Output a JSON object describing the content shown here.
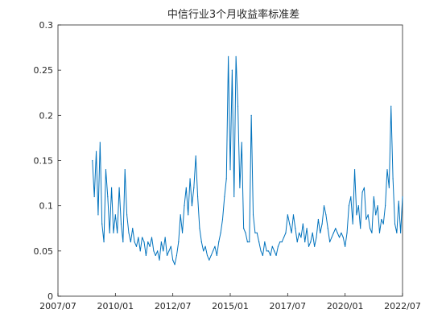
{
  "chart_data": {
    "type": "line",
    "title": "中信行业3个月收益率标准差",
    "xlabel": "",
    "ylabel": "",
    "x_ticks": [
      "2007/07",
      "2010/01",
      "2012/07",
      "2015/01",
      "2017/07",
      "2020/01",
      "2022/07"
    ],
    "y_ticks": [
      "0",
      "0.05",
      "0.1",
      "0.15",
      "0.2",
      "0.25",
      "0.3"
    ],
    "xlim": [
      "2007/07",
      "2022/07"
    ],
    "ylim": [
      0,
      0.3
    ],
    "grid": false,
    "line_color": "#0072BD",
    "series": [
      {
        "x": [
          "2009/01",
          "2009/02",
          "2009/03",
          "2009/04",
          "2009/05",
          "2009/06",
          "2009/07",
          "2009/08",
          "2009/09",
          "2009/10",
          "2009/11",
          "2009/12",
          "2010/01",
          "2010/02",
          "2010/03",
          "2010/04",
          "2010/05",
          "2010/06",
          "2010/07",
          "2010/08",
          "2010/09",
          "2010/10",
          "2010/11",
          "2010/12",
          "2011/01",
          "2011/02",
          "2011/03",
          "2011/04",
          "2011/05",
          "2011/06",
          "2011/07",
          "2011/08",
          "2011/09",
          "2011/10",
          "2011/11",
          "2011/12",
          "2012/01",
          "2012/02",
          "2012/03",
          "2012/04",
          "2012/05",
          "2012/06",
          "2012/07",
          "2012/08",
          "2012/09",
          "2012/10",
          "2012/11",
          "2012/12",
          "2013/01",
          "2013/02",
          "2013/03",
          "2013/04",
          "2013/05",
          "2013/06",
          "2013/07",
          "2013/08",
          "2013/09",
          "2013/10",
          "2013/11",
          "2013/12",
          "2014/01",
          "2014/02",
          "2014/03",
          "2014/04",
          "2014/05",
          "2014/06",
          "2014/07",
          "2014/08",
          "2014/09",
          "2014/10",
          "2014/11",
          "2014/12",
          "2015/01",
          "2015/02",
          "2015/03",
          "2015/04",
          "2015/05",
          "2015/06",
          "2015/07",
          "2015/08",
          "2015/09",
          "2015/10",
          "2015/11",
          "2015/12",
          "2016/01",
          "2016/02",
          "2016/03",
          "2016/04",
          "2016/05",
          "2016/06",
          "2016/07",
          "2016/08",
          "2016/09",
          "2016/10",
          "2016/11",
          "2016/12",
          "2017/01",
          "2017/02",
          "2017/03",
          "2017/04",
          "2017/05",
          "2017/06",
          "2017/07",
          "2017/08",
          "2017/09",
          "2017/10",
          "2017/11",
          "2017/12",
          "2018/01",
          "2018/02",
          "2018/03",
          "2018/04",
          "2018/05",
          "2018/06",
          "2018/07",
          "2018/08",
          "2018/09",
          "2018/10",
          "2018/11",
          "2018/12",
          "2019/01",
          "2019/02",
          "2019/03",
          "2019/04",
          "2019/05",
          "2019/06",
          "2019/07",
          "2019/08",
          "2019/09",
          "2019/10",
          "2019/11",
          "2019/12",
          "2020/01",
          "2020/02",
          "2020/03",
          "2020/04",
          "2020/05",
          "2020/06",
          "2020/07",
          "2020/08",
          "2020/09",
          "2020/10",
          "2020/11",
          "2020/12",
          "2021/01",
          "2021/02",
          "2021/03",
          "2021/04",
          "2021/05",
          "2021/06",
          "2021/07",
          "2021/08",
          "2021/09",
          "2021/10",
          "2021/11",
          "2021/12",
          "2022/01",
          "2022/02",
          "2022/03",
          "2022/04",
          "2022/05",
          "2022/06",
          "2022/07"
        ],
        "values": [
          0.15,
          0.11,
          0.16,
          0.09,
          0.17,
          0.08,
          0.06,
          0.14,
          0.11,
          0.07,
          0.12,
          0.07,
          0.09,
          0.07,
          0.12,
          0.08,
          0.06,
          0.14,
          0.09,
          0.07,
          0.06,
          0.075,
          0.06,
          0.055,
          0.065,
          0.05,
          0.065,
          0.06,
          0.045,
          0.06,
          0.055,
          0.065,
          0.05,
          0.045,
          0.05,
          0.04,
          0.06,
          0.05,
          0.065,
          0.045,
          0.05,
          0.055,
          0.04,
          0.035,
          0.045,
          0.06,
          0.09,
          0.07,
          0.1,
          0.12,
          0.09,
          0.13,
          0.1,
          0.12,
          0.155,
          0.11,
          0.075,
          0.06,
          0.05,
          0.055,
          0.045,
          0.04,
          0.045,
          0.05,
          0.055,
          0.045,
          0.06,
          0.07,
          0.085,
          0.11,
          0.13,
          0.265,
          0.14,
          0.25,
          0.11,
          0.265,
          0.21,
          0.12,
          0.17,
          0.075,
          0.07,
          0.06,
          0.06,
          0.2,
          0.09,
          0.07,
          0.07,
          0.06,
          0.05,
          0.045,
          0.06,
          0.05,
          0.05,
          0.045,
          0.055,
          0.05,
          0.045,
          0.055,
          0.06,
          0.06,
          0.065,
          0.07,
          0.09,
          0.08,
          0.07,
          0.09,
          0.075,
          0.06,
          0.07,
          0.065,
          0.08,
          0.06,
          0.075,
          0.055,
          0.06,
          0.07,
          0.055,
          0.065,
          0.085,
          0.07,
          0.08,
          0.1,
          0.09,
          0.075,
          0.06,
          0.065,
          0.07,
          0.075,
          0.07,
          0.065,
          0.07,
          0.065,
          0.055,
          0.07,
          0.1,
          0.11,
          0.08,
          0.14,
          0.09,
          0.1,
          0.075,
          0.115,
          0.12,
          0.085,
          0.09,
          0.075,
          0.07,
          0.11,
          0.09,
          0.1,
          0.07,
          0.085,
          0.08,
          0.1,
          0.14,
          0.12,
          0.21,
          0.13,
          0.08,
          0.07,
          0.105,
          0.07,
          0.11
        ]
      }
    ]
  }
}
